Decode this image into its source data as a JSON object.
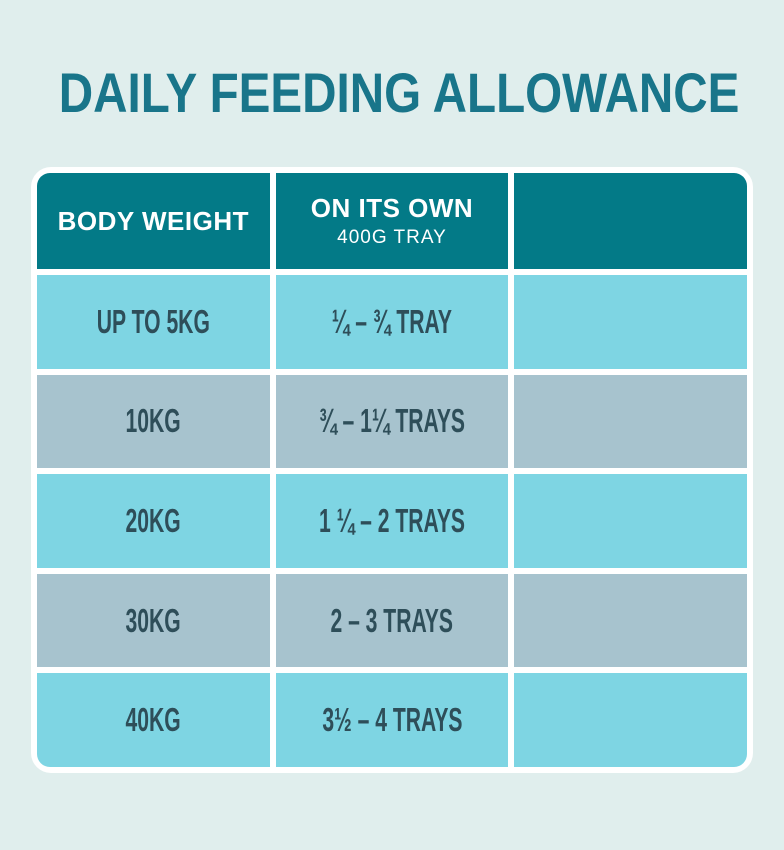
{
  "title": "DAILY FEEDING ALLOWANCE",
  "colors": {
    "background": "#e0eeed",
    "title_text": "#19758a",
    "header_background": "#037a87",
    "header_text": "#ffffff",
    "row_cyan": "#7ed5e3",
    "row_gray": "#a7c3ce",
    "cell_text": "#2e4e59",
    "grid_lines": "#ffffff"
  },
  "table": {
    "headers": [
      {
        "main": "BODY WEIGHT",
        "sub": ""
      },
      {
        "main": "ON ITS OWN",
        "sub": "400G TRAY"
      },
      {
        "main": "",
        "sub": ""
      }
    ],
    "rows": [
      {
        "weight": "UP TO 5KG",
        "on_its_own": "¼ – ¾ TRAY",
        "col3": ""
      },
      {
        "weight": "10KG",
        "on_its_own": "¾ – 1¼ TRAYS",
        "col3": ""
      },
      {
        "weight": "20KG",
        "on_its_own": "1 ¼ – 2 TRAYS",
        "col3": ""
      },
      {
        "weight": "30KG",
        "on_its_own": "2 – 3 TRAYS",
        "col3": ""
      },
      {
        "weight": "40KG",
        "on_its_own": "3½ – 4 TRAYS",
        "col3": ""
      }
    ]
  },
  "chart_data": {
    "type": "table",
    "title": "DAILY FEEDING ALLOWANCE",
    "columns": [
      "BODY WEIGHT",
      "ON ITS OWN 400G TRAY",
      ""
    ],
    "rows": [
      [
        "UP TO 5KG",
        "¼ – ¾ TRAY",
        ""
      ],
      [
        "10KG",
        "¾ – 1¼ TRAYS",
        ""
      ],
      [
        "20KG",
        "1 ¼ – 2 TRAYS",
        ""
      ],
      [
        "30KG",
        "2 – 3 TRAYS",
        ""
      ],
      [
        "40KG",
        "3½ – 4 TRAYS",
        ""
      ]
    ]
  }
}
